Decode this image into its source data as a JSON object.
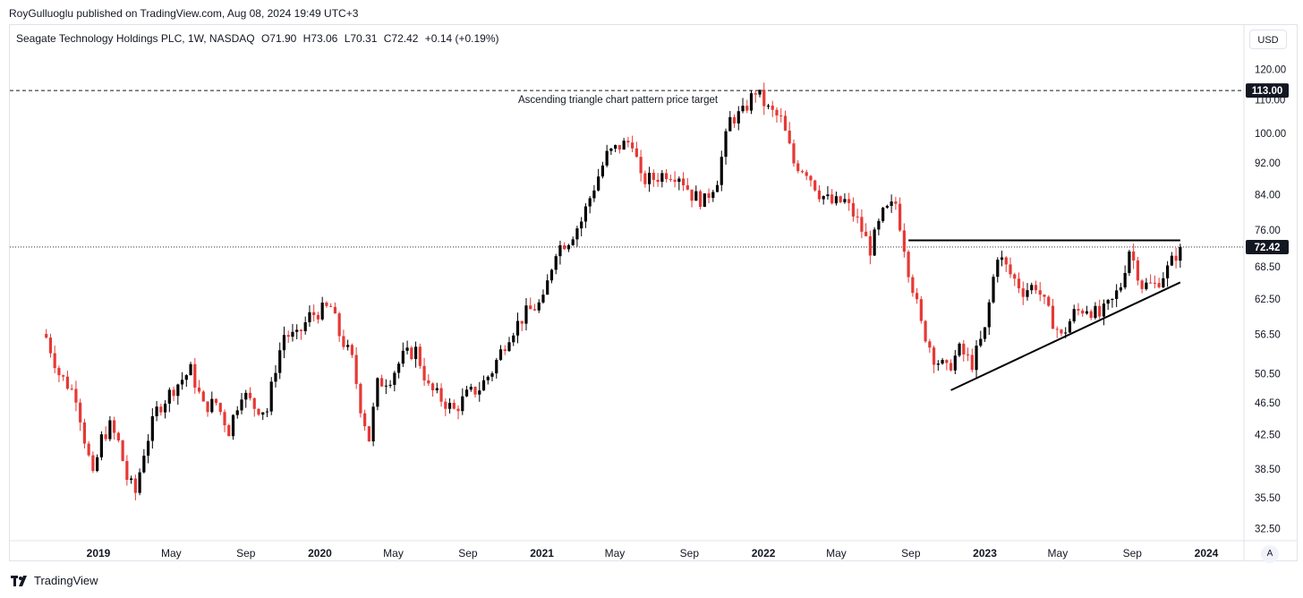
{
  "header": {
    "publisher_line": "RoyGulluoglu published on TradingView.com, Aug 08, 2024 19:49 UTC+3"
  },
  "legend": {
    "symbol": "Seagate Technology Holdings PLC, 1W, NASDAQ",
    "open": "O71.90",
    "high": "H73.06",
    "low": "L70.31",
    "close": "C72.42",
    "change": "+0.14 (+0.19%)"
  },
  "toolbar": {
    "currency": "USD",
    "auto_scale": "A"
  },
  "footer": {
    "brand": "TradingView"
  },
  "chart_data": {
    "type": "candlestick",
    "title": "Seagate Technology Holdings PLC, 1W, NASDAQ",
    "y_axis_ticks": [
      "120.00",
      "110.00",
      "100.00",
      "92.00",
      "84.00",
      "76.00",
      "68.50",
      "62.50",
      "56.50",
      "50.50",
      "46.50",
      "42.50",
      "38.50",
      "35.50",
      "32.50"
    ],
    "y_axis_tick_values": [
      120,
      110,
      100,
      92,
      84,
      76,
      68.5,
      62.5,
      56.5,
      50.5,
      46.5,
      42.5,
      38.5,
      35.5,
      32.5
    ],
    "x_axis_ticks": [
      {
        "label": "2019",
        "date": "2019-01-01",
        "bold": true
      },
      {
        "label": "May",
        "date": "2019-05-01",
        "bold": false
      },
      {
        "label": "Sep",
        "date": "2019-09-01",
        "bold": false
      },
      {
        "label": "2020",
        "date": "2020-01-01",
        "bold": true
      },
      {
        "label": "May",
        "date": "2020-05-01",
        "bold": false
      },
      {
        "label": "Sep",
        "date": "2020-09-01",
        "bold": false
      },
      {
        "label": "2021",
        "date": "2021-01-01",
        "bold": true
      },
      {
        "label": "May",
        "date": "2021-05-01",
        "bold": false
      },
      {
        "label": "Sep",
        "date": "2021-09-01",
        "bold": false
      },
      {
        "label": "2022",
        "date": "2022-01-01",
        "bold": true
      },
      {
        "label": "May",
        "date": "2022-05-01",
        "bold": false
      },
      {
        "label": "Sep",
        "date": "2022-09-01",
        "bold": false
      },
      {
        "label": "2023",
        "date": "2023-01-01",
        "bold": true
      },
      {
        "label": "May",
        "date": "2023-05-01",
        "bold": false
      },
      {
        "label": "Sep",
        "date": "2023-09-01",
        "bold": false
      },
      {
        "label": "2024",
        "date": "2024-01-01",
        "bold": true
      }
    ],
    "last_price": 72.42,
    "last_price_label": "72.42",
    "target_price": 113.0,
    "target_price_label": "113.00",
    "annotation": "Ascending triangle chart pattern price target",
    "up_color": "#000000",
    "down_color": "#e53935",
    "resistance_line": {
      "x": [
        "2022-08-28",
        "2023-11-19"
      ],
      "y": [
        73.8,
        73.8
      ]
    },
    "support_line": {
      "x": [
        "2022-11-06",
        "2023-11-19"
      ],
      "y": [
        48.2,
        65.5
      ]
    },
    "closes": [
      {
        "x": "2018-10-07",
        "y": 56.0
      },
      {
        "x": "2018-10-28",
        "y": 50.5
      },
      {
        "x": "2018-11-25",
        "y": 47.5
      },
      {
        "x": "2018-12-09",
        "y": 42.0
      },
      {
        "x": "2018-12-23",
        "y": 37.5
      },
      {
        "x": "2019-01-06",
        "y": 42.0
      },
      {
        "x": "2019-01-20",
        "y": 43.5
      },
      {
        "x": "2019-02-03",
        "y": 41.5
      },
      {
        "x": "2019-02-17",
        "y": 37.5
      },
      {
        "x": "2019-03-03",
        "y": 36.0
      },
      {
        "x": "2019-03-17",
        "y": 40.5
      },
      {
        "x": "2019-04-07",
        "y": 45.5
      },
      {
        "x": "2019-05-05",
        "y": 48.5
      },
      {
        "x": "2019-06-02",
        "y": 51.0
      },
      {
        "x": "2019-06-23",
        "y": 46.0
      },
      {
        "x": "2019-07-14",
        "y": 46.5
      },
      {
        "x": "2019-08-04",
        "y": 43.0
      },
      {
        "x": "2019-08-25",
        "y": 48.0
      },
      {
        "x": "2019-09-15",
        "y": 46.0
      },
      {
        "x": "2019-10-06",
        "y": 45.5
      },
      {
        "x": "2019-10-20",
        "y": 51.5
      },
      {
        "x": "2019-11-03",
        "y": 56.5
      },
      {
        "x": "2019-11-24",
        "y": 56.0
      },
      {
        "x": "2019-12-15",
        "y": 59.5
      },
      {
        "x": "2020-01-05",
        "y": 60.5
      },
      {
        "x": "2020-01-19",
        "y": 61.0
      },
      {
        "x": "2020-02-02",
        "y": 56.5
      },
      {
        "x": "2020-02-23",
        "y": 52.5
      },
      {
        "x": "2020-03-08",
        "y": 46.0
      },
      {
        "x": "2020-03-22",
        "y": 42.0
      },
      {
        "x": "2020-04-05",
        "y": 49.0
      },
      {
        "x": "2020-04-26",
        "y": 50.0
      },
      {
        "x": "2020-05-17",
        "y": 53.0
      },
      {
        "x": "2020-06-07",
        "y": 54.0
      },
      {
        "x": "2020-06-28",
        "y": 48.5
      },
      {
        "x": "2020-07-19",
        "y": 47.0
      },
      {
        "x": "2020-08-09",
        "y": 45.5
      },
      {
        "x": "2020-08-30",
        "y": 47.5
      },
      {
        "x": "2020-09-20",
        "y": 48.5
      },
      {
        "x": "2020-10-11",
        "y": 51.0
      },
      {
        "x": "2020-11-08",
        "y": 56.5
      },
      {
        "x": "2020-12-06",
        "y": 60.0
      },
      {
        "x": "2021-01-03",
        "y": 62.0
      },
      {
        "x": "2021-01-24",
        "y": 72.0
      },
      {
        "x": "2021-02-14",
        "y": 74.0
      },
      {
        "x": "2021-03-07",
        "y": 78.0
      },
      {
        "x": "2021-03-28",
        "y": 86.0
      },
      {
        "x": "2021-04-18",
        "y": 94.0
      },
      {
        "x": "2021-05-09",
        "y": 96.5
      },
      {
        "x": "2021-05-30",
        "y": 98.0
      },
      {
        "x": "2021-06-13",
        "y": 87.5
      },
      {
        "x": "2021-07-04",
        "y": 88.0
      },
      {
        "x": "2021-07-25",
        "y": 89.5
      },
      {
        "x": "2021-08-15",
        "y": 89.0
      },
      {
        "x": "2021-09-05",
        "y": 84.0
      },
      {
        "x": "2021-09-26",
        "y": 82.5
      },
      {
        "x": "2021-10-17",
        "y": 88.0
      },
      {
        "x": "2021-11-07",
        "y": 104.0
      },
      {
        "x": "2021-11-28",
        "y": 106.0
      },
      {
        "x": "2021-12-19",
        "y": 113.0
      },
      {
        "x": "2022-01-09",
        "y": 107.0
      },
      {
        "x": "2022-01-30",
        "y": 104.0
      },
      {
        "x": "2022-02-20",
        "y": 92.0
      },
      {
        "x": "2022-03-13",
        "y": 90.0
      },
      {
        "x": "2022-04-03",
        "y": 84.5
      },
      {
        "x": "2022-04-24",
        "y": 82.0
      },
      {
        "x": "2022-05-15",
        "y": 82.5
      },
      {
        "x": "2022-06-05",
        "y": 78.0
      },
      {
        "x": "2022-06-26",
        "y": 72.0
      },
      {
        "x": "2022-07-17",
        "y": 79.5
      },
      {
        "x": "2022-08-07",
        "y": 82.0
      },
      {
        "x": "2022-08-28",
        "y": 68.0
      },
      {
        "x": "2022-09-18",
        "y": 58.0
      },
      {
        "x": "2022-10-09",
        "y": 53.0
      },
      {
        "x": "2022-10-30",
        "y": 51.0
      },
      {
        "x": "2022-11-20",
        "y": 54.0
      },
      {
        "x": "2022-12-11",
        "y": 52.0
      },
      {
        "x": "2023-01-01",
        "y": 57.0
      },
      {
        "x": "2023-01-22",
        "y": 71.0
      },
      {
        "x": "2023-02-12",
        "y": 67.0
      },
      {
        "x": "2023-03-05",
        "y": 64.0
      },
      {
        "x": "2023-03-26",
        "y": 65.0
      },
      {
        "x": "2023-04-16",
        "y": 60.0
      },
      {
        "x": "2023-05-07",
        "y": 56.0
      },
      {
        "x": "2023-05-28",
        "y": 60.0
      },
      {
        "x": "2023-06-18",
        "y": 61.0
      },
      {
        "x": "2023-07-09",
        "y": 59.5
      },
      {
        "x": "2023-07-30",
        "y": 62.0
      },
      {
        "x": "2023-08-13",
        "y": 65.0
      },
      {
        "x": "2023-08-27",
        "y": 72.0
      },
      {
        "x": "2023-09-17",
        "y": 65.0
      },
      {
        "x": "2023-10-08",
        "y": 65.0
      },
      {
        "x": "2023-10-29",
        "y": 68.0
      },
      {
        "x": "2023-11-19",
        "y": 72.4
      }
    ]
  }
}
